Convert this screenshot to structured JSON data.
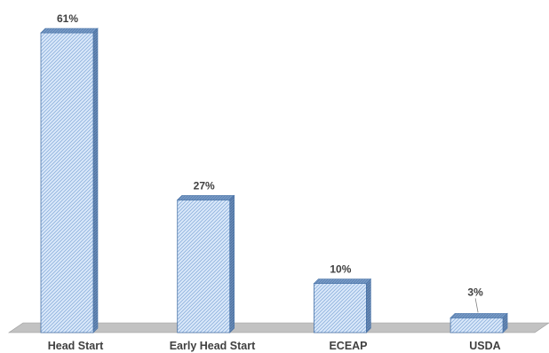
{
  "chart_data": {
    "type": "bar",
    "style": "3d-column",
    "categories": [
      "Head Start",
      "Early Head Start",
      "ECEAP",
      "USDA"
    ],
    "values": [
      61,
      27,
      10,
      3
    ],
    "value_labels": [
      "61%",
      "27%",
      "10%",
      "3%"
    ],
    "unit": "%",
    "ylim": [
      0,
      61
    ],
    "grid": false,
    "legend": "none",
    "colors": {
      "bar_fill": "#dbe9fa",
      "bar_hatch": "#8fb2dd",
      "bar_top": "#6f94c2",
      "bar_side": "#5b7fad",
      "bar_stroke": "#4a74a8",
      "floor": "#c2c2c2",
      "floor_stroke": "#9a9a9a",
      "leader_line": "#808080",
      "text": "#404040"
    }
  }
}
